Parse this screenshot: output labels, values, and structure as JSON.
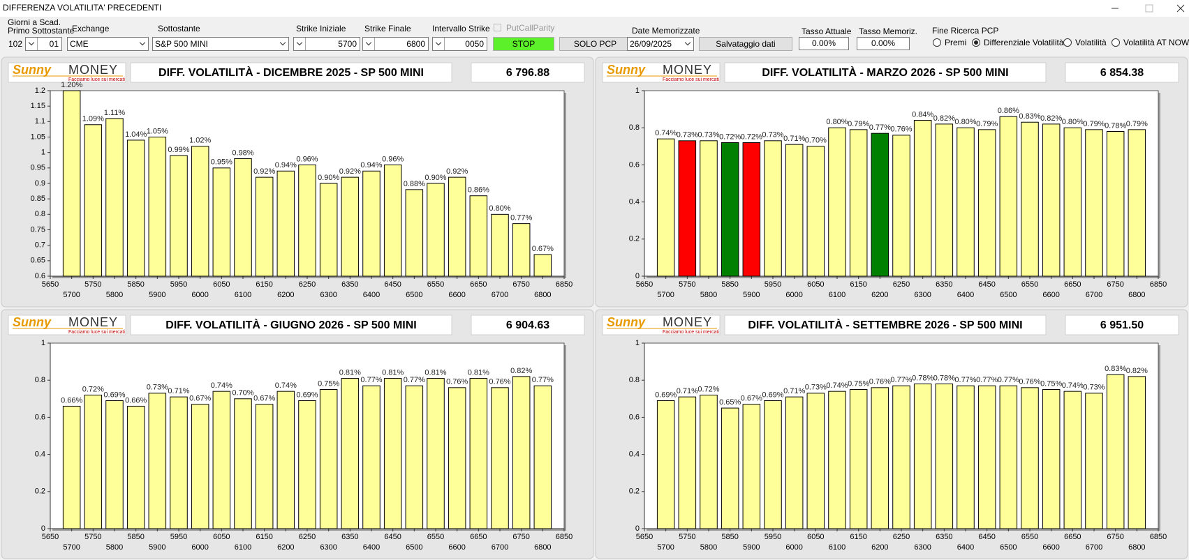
{
  "window": {
    "title": "DIFFERENZA VOLATILITA' PRECEDENTI"
  },
  "toolbar": {
    "days_label_1": "Giorni a Scad.",
    "days_label_2": "Primo Sottostante",
    "days": "102",
    "days_combo": "01",
    "exchange_label": "Exchange",
    "exchange": "CME",
    "underlying_label": "Sottostante",
    "underlying": "S&P 500 MINI",
    "strike_start_label": "Strike Iniziale",
    "strike_start": "5700",
    "strike_end_label": "Strike Finale",
    "strike_end": "6800",
    "strike_step_label": "Intervallo Strike",
    "strike_step": "0050",
    "pcp_checkbox": "PutCallParity",
    "stop_button": "STOP",
    "solo_pcp_button": "SOLO PCP",
    "dates_label": "Date Memorizzate",
    "date": "26/09/2025",
    "save_button": "Salvataggio dati",
    "rate_label": "Tasso Attuale",
    "rate": "0.00%",
    "stored_rate_label": "Tasso Memoriz.",
    "stored_rate": "0.00%",
    "pcp_end_label": "Fine Ricerca PCP",
    "radios": [
      {
        "label": "Premi",
        "checked": false
      },
      {
        "label": "Differenziale Volatilità",
        "checked": true
      },
      {
        "label": "Volatilità",
        "checked": false
      },
      {
        "label": "Volatilità AT NOW",
        "checked": false
      }
    ]
  },
  "logo": {
    "brand_1": "Sunny",
    "brand_2": "MONEY",
    "tagline": "Facciamo luce sui mercati"
  },
  "chart_data": [
    {
      "type": "bar",
      "title": "DIFF. VOLATILITÀ - DICEMBRE 2025 - SP 500 MINI",
      "price": "6 796.88",
      "x": [
        5700,
        5750,
        5800,
        5850,
        5900,
        5950,
        6000,
        6050,
        6100,
        6150,
        6200,
        6250,
        6300,
        6350,
        6400,
        6450,
        6500,
        6550,
        6600,
        6650,
        6700,
        6750,
        6800
      ],
      "values": [
        1.2,
        1.09,
        1.11,
        1.04,
        1.05,
        0.99,
        1.02,
        0.95,
        0.98,
        0.92,
        0.94,
        0.96,
        0.9,
        0.92,
        0.94,
        0.96,
        0.88,
        0.9,
        0.92,
        0.86,
        0.8,
        0.77,
        0.67
      ],
      "value_labels": [
        "1.20%",
        "1.09%",
        "1.11%",
        "1.04%",
        "1.05%",
        "0.99%",
        "1.02%",
        "0.95%",
        "0.98%",
        "0.92%",
        "0.94%",
        "0.96%",
        "0.90%",
        "0.92%",
        "0.94%",
        "0.96%",
        "0.88%",
        "0.90%",
        "0.92%",
        "0.86%",
        "0.80%",
        "0.77%",
        "0.67%"
      ],
      "color": "#ffff99",
      "xlim": [
        5650,
        6850
      ],
      "xticks": [
        5650,
        5700,
        5750,
        5800,
        5850,
        5900,
        5950,
        6000,
        6050,
        6100,
        6150,
        6200,
        6250,
        6300,
        6350,
        6400,
        6450,
        6500,
        6550,
        6600,
        6650,
        6700,
        6750,
        6800,
        6850
      ],
      "ylim": [
        0.6,
        1.2
      ],
      "yticks": [
        0.6,
        0.65,
        0.7,
        0.75,
        0.8,
        0.85,
        0.9,
        0.95,
        1,
        1.05,
        1.1,
        1.15,
        1.2
      ]
    },
    {
      "type": "bar",
      "title": "DIFF. VOLATILITÀ - MARZO 2026 - SP 500 MINI",
      "price": "6 854.38",
      "x": [
        5700,
        5750,
        5800,
        5850,
        5900,
        5950,
        6000,
        6050,
        6100,
        6150,
        6200,
        6250,
        6300,
        6350,
        6400,
        6450,
        6500,
        6550,
        6600,
        6650,
        6700,
        6750,
        6800
      ],
      "values": [
        0.74,
        0.73,
        0.73,
        0.72,
        0.72,
        0.73,
        0.71,
        0.7,
        0.8,
        0.79,
        0.77,
        0.76,
        0.84,
        0.82,
        0.8,
        0.79,
        0.86,
        0.83,
        0.82,
        0.8,
        0.79,
        0.78,
        0.79
      ],
      "value_labels": [
        "0.74%",
        "0.73%",
        "0.73%",
        "0.72%",
        "0.72%",
        "0.73%",
        "0.71%",
        "0.70%",
        "0.80%",
        "0.79%",
        "0.77%",
        "0.76%",
        "0.84%",
        "0.82%",
        "0.80%",
        "0.79%",
        "0.86%",
        "0.83%",
        "0.82%",
        "0.80%",
        "0.79%",
        "0.78%",
        "0.79%"
      ],
      "color": "#ffff99",
      "bar_colors": [
        "#ffff99",
        "#ff0000",
        "#ffff99",
        "#008000",
        "#ff0000",
        "#ffff99",
        "#ffff99",
        "#ffff99",
        "#ffff99",
        "#ffff99",
        "#008000",
        "#ffff99",
        "#ffff99",
        "#ffff99",
        "#ffff99",
        "#ffff99",
        "#ffff99",
        "#ffff99",
        "#ffff99",
        "#ffff99",
        "#ffff99",
        "#ffff99",
        "#ffff99"
      ],
      "xlim": [
        5650,
        6850
      ],
      "xticks": [
        5650,
        5700,
        5750,
        5800,
        5850,
        5900,
        5950,
        6000,
        6050,
        6100,
        6150,
        6200,
        6250,
        6300,
        6350,
        6400,
        6450,
        6500,
        6550,
        6600,
        6650,
        6700,
        6750,
        6800,
        6850
      ],
      "ylim": [
        0,
        1
      ],
      "yticks": [
        0,
        0.2,
        0.4,
        0.6,
        0.8,
        1
      ]
    },
    {
      "type": "bar",
      "title": "DIFF. VOLATILITÀ - GIUGNO 2026 - SP 500 MINI",
      "price": "6 904.63",
      "x": [
        5700,
        5750,
        5800,
        5850,
        5900,
        5950,
        6000,
        6050,
        6100,
        6150,
        6200,
        6250,
        6300,
        6350,
        6400,
        6450,
        6500,
        6550,
        6600,
        6650,
        6700,
        6750,
        6800
      ],
      "values": [
        0.66,
        0.72,
        0.69,
        0.66,
        0.73,
        0.71,
        0.67,
        0.74,
        0.7,
        0.67,
        0.74,
        0.69,
        0.75,
        0.81,
        0.77,
        0.81,
        0.77,
        0.81,
        0.76,
        0.81,
        0.76,
        0.82,
        0.77
      ],
      "value_labels": [
        "0.66%",
        "0.72%",
        "0.69%",
        "0.66%",
        "0.73%",
        "0.71%",
        "0.67%",
        "0.74%",
        "0.70%",
        "0.67%",
        "0.74%",
        "0.69%",
        "0.75%",
        "0.81%",
        "0.77%",
        "0.81%",
        "0.77%",
        "0.81%",
        "0.76%",
        "0.81%",
        "0.76%",
        "0.82%",
        "0.77%"
      ],
      "color": "#ffff99",
      "xlim": [
        5650,
        6850
      ],
      "xticks": [
        5650,
        5700,
        5750,
        5800,
        5850,
        5900,
        5950,
        6000,
        6050,
        6100,
        6150,
        6200,
        6250,
        6300,
        6350,
        6400,
        6450,
        6500,
        6550,
        6600,
        6650,
        6700,
        6750,
        6800,
        6850
      ],
      "ylim": [
        0,
        1
      ],
      "yticks": [
        0,
        0.2,
        0.4,
        0.6,
        0.8,
        1
      ]
    },
    {
      "type": "bar",
      "title": "DIFF. VOLATILITÀ - SETTEMBRE 2026 - SP 500 MINI",
      "price": "6 951.50",
      "x": [
        5700,
        5750,
        5800,
        5850,
        5900,
        5950,
        6000,
        6050,
        6100,
        6150,
        6200,
        6250,
        6300,
        6350,
        6400,
        6450,
        6500,
        6550,
        6600,
        6650,
        6700,
        6750,
        6800
      ],
      "values": [
        0.69,
        0.71,
        0.72,
        0.65,
        0.67,
        0.69,
        0.71,
        0.73,
        0.74,
        0.75,
        0.76,
        0.77,
        0.78,
        0.78,
        0.77,
        0.77,
        0.77,
        0.76,
        0.75,
        0.74,
        0.73,
        0.83,
        0.82
      ],
      "value_labels": [
        "0.69%",
        "0.71%",
        "0.72%",
        "0.65%",
        "0.67%",
        "0.69%",
        "0.71%",
        "0.73%",
        "0.74%",
        "0.75%",
        "0.76%",
        "0.77%",
        "0.78%",
        "0.78%",
        "0.77%",
        "0.77%",
        "0.77%",
        "0.76%",
        "0.75%",
        "0.74%",
        "0.73%",
        "0.83%",
        "0.82%"
      ],
      "color": "#ffff99",
      "xlim": [
        5650,
        6850
      ],
      "xticks": [
        5650,
        5700,
        5750,
        5800,
        5850,
        5900,
        5950,
        6000,
        6050,
        6100,
        6150,
        6200,
        6250,
        6300,
        6350,
        6400,
        6450,
        6500,
        6550,
        6600,
        6650,
        6700,
        6750,
        6800,
        6850
      ],
      "ylim": [
        0,
        1
      ],
      "yticks": [
        0,
        0.2,
        0.4,
        0.6,
        0.8,
        1
      ]
    }
  ]
}
